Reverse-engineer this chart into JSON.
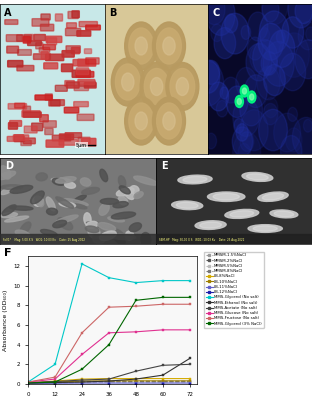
{
  "xlabel": "Time (hrs)",
  "ylabel": "Absorbance (OD₆₀₀)",
  "xlim": [
    0,
    75
  ],
  "ylim": [
    0,
    13
  ],
  "xticks": [
    0,
    12,
    24,
    36,
    48,
    60,
    72
  ],
  "yticks": [
    0,
    2,
    4,
    6,
    8,
    10,
    12
  ],
  "series": [
    {
      "label": "MMSM-1.5%NaCl",
      "color": "#999999",
      "linestyle": "--",
      "marker": "s",
      "data_x": [
        0,
        12,
        24,
        36,
        48,
        60,
        72
      ],
      "data_y": [
        0.1,
        0.18,
        0.25,
        0.28,
        0.3,
        0.3,
        0.3
      ]
    },
    {
      "label": "MMSM-2%NaCl",
      "color": "#555555",
      "linestyle": "--",
      "marker": "s",
      "data_x": [
        0,
        12,
        24,
        36,
        48,
        60,
        72
      ],
      "data_y": [
        0.1,
        0.14,
        0.2,
        0.22,
        0.24,
        0.24,
        0.24
      ]
    },
    {
      "label": "MMSM-5%NaCl",
      "color": "#bbbbbb",
      "linestyle": "--",
      "marker": "s",
      "data_x": [
        0,
        12,
        24,
        36,
        48,
        60,
        72
      ],
      "data_y": [
        0.1,
        0.12,
        0.14,
        0.16,
        0.17,
        0.17,
        0.17
      ]
    },
    {
      "label": "MMSM-8%NaCl",
      "color": "#777777",
      "linestyle": "--",
      "marker": "s",
      "data_x": [
        0,
        12,
        24,
        36,
        48,
        60,
        72
      ],
      "data_y": [
        0.05,
        0.05,
        0.05,
        0.05,
        0.05,
        0.05,
        0.05
      ]
    },
    {
      "label": "LB-8%NaCl",
      "color": "#d4aa00",
      "linestyle": "-",
      "marker": "s",
      "data_x": [
        0,
        12,
        24,
        36,
        48,
        60,
        72
      ],
      "data_y": [
        0.1,
        0.3,
        0.5,
        0.55,
        0.55,
        0.55,
        0.55
      ]
    },
    {
      "label": "LB-10%NaCl",
      "color": "#a08000",
      "linestyle": "-",
      "marker": "s",
      "data_x": [
        0,
        12,
        24,
        36,
        48,
        60,
        72
      ],
      "data_y": [
        0.1,
        0.2,
        0.3,
        0.32,
        0.32,
        0.32,
        0.32
      ]
    },
    {
      "label": "LB-11%NaCl",
      "color": "#6060cc",
      "linestyle": "-",
      "marker": "s",
      "data_x": [
        0,
        12,
        24,
        36,
        48,
        60,
        72
      ],
      "data_y": [
        0.05,
        0.08,
        0.1,
        0.1,
        0.1,
        0.1,
        0.1
      ]
    },
    {
      "label": "LB-12%NaCl",
      "color": "#2020aa",
      "linestyle": "-",
      "marker": "s",
      "data_x": [
        0,
        12,
        24,
        36,
        48,
        60,
        72
      ],
      "data_y": [
        0.05,
        0.05,
        0.05,
        0.05,
        0.05,
        0.05,
        0.05
      ]
    },
    {
      "label": "MMS-Glycerol (No salt)",
      "color": "#00c8c8",
      "linestyle": "-",
      "marker": "s",
      "data_x": [
        0,
        12,
        24,
        36,
        48,
        60,
        72
      ],
      "data_y": [
        0.2,
        2.0,
        12.2,
        10.8,
        10.3,
        10.5,
        10.5
      ]
    },
    {
      "label": "MMS-Ethanol (No salt)",
      "color": "#333333",
      "linestyle": "-",
      "marker": "s",
      "data_x": [
        0,
        12,
        24,
        36,
        48,
        60,
        72
      ],
      "data_y": [
        0.1,
        0.15,
        0.2,
        0.3,
        0.5,
        0.9,
        2.6
      ]
    },
    {
      "label": "MMS-Acetate (No salt)",
      "color": "#444444",
      "linestyle": "-",
      "marker": "s",
      "data_x": [
        0,
        12,
        24,
        36,
        48,
        60,
        72
      ],
      "data_y": [
        0.15,
        0.25,
        0.4,
        0.5,
        1.3,
        1.9,
        2.0
      ]
    },
    {
      "label": "MMS-Glucose (No salt)",
      "color": "#e03090",
      "linestyle": "-",
      "marker": "s",
      "data_x": [
        0,
        12,
        24,
        36,
        48,
        60,
        72
      ],
      "data_y": [
        0.2,
        0.5,
        3.0,
        5.2,
        5.3,
        5.5,
        5.5
      ]
    },
    {
      "label": "MMS-Fructose (No salt)",
      "color": "#cc6666",
      "linestyle": "-",
      "marker": "s",
      "data_x": [
        0,
        12,
        24,
        36,
        48,
        60,
        72
      ],
      "data_y": [
        0.2,
        0.7,
        5.2,
        7.8,
        7.9,
        8.1,
        8.1
      ]
    },
    {
      "label": "MMS-Glycerol (3% NaCl)",
      "color": "#006600",
      "linestyle": "-",
      "marker": "s",
      "data_x": [
        0,
        12,
        24,
        36,
        48,
        60,
        72
      ],
      "data_y": [
        0.1,
        0.2,
        1.5,
        4.0,
        8.5,
        8.8,
        8.8
      ]
    }
  ],
  "panel_A_bg": "#c8e8e8",
  "panel_B_bg": "#d8c898",
  "panel_C_bg": "#080828",
  "panel_D_bg": "#888888",
  "panel_E_bg": "#909090",
  "background_color": "#ffffff"
}
